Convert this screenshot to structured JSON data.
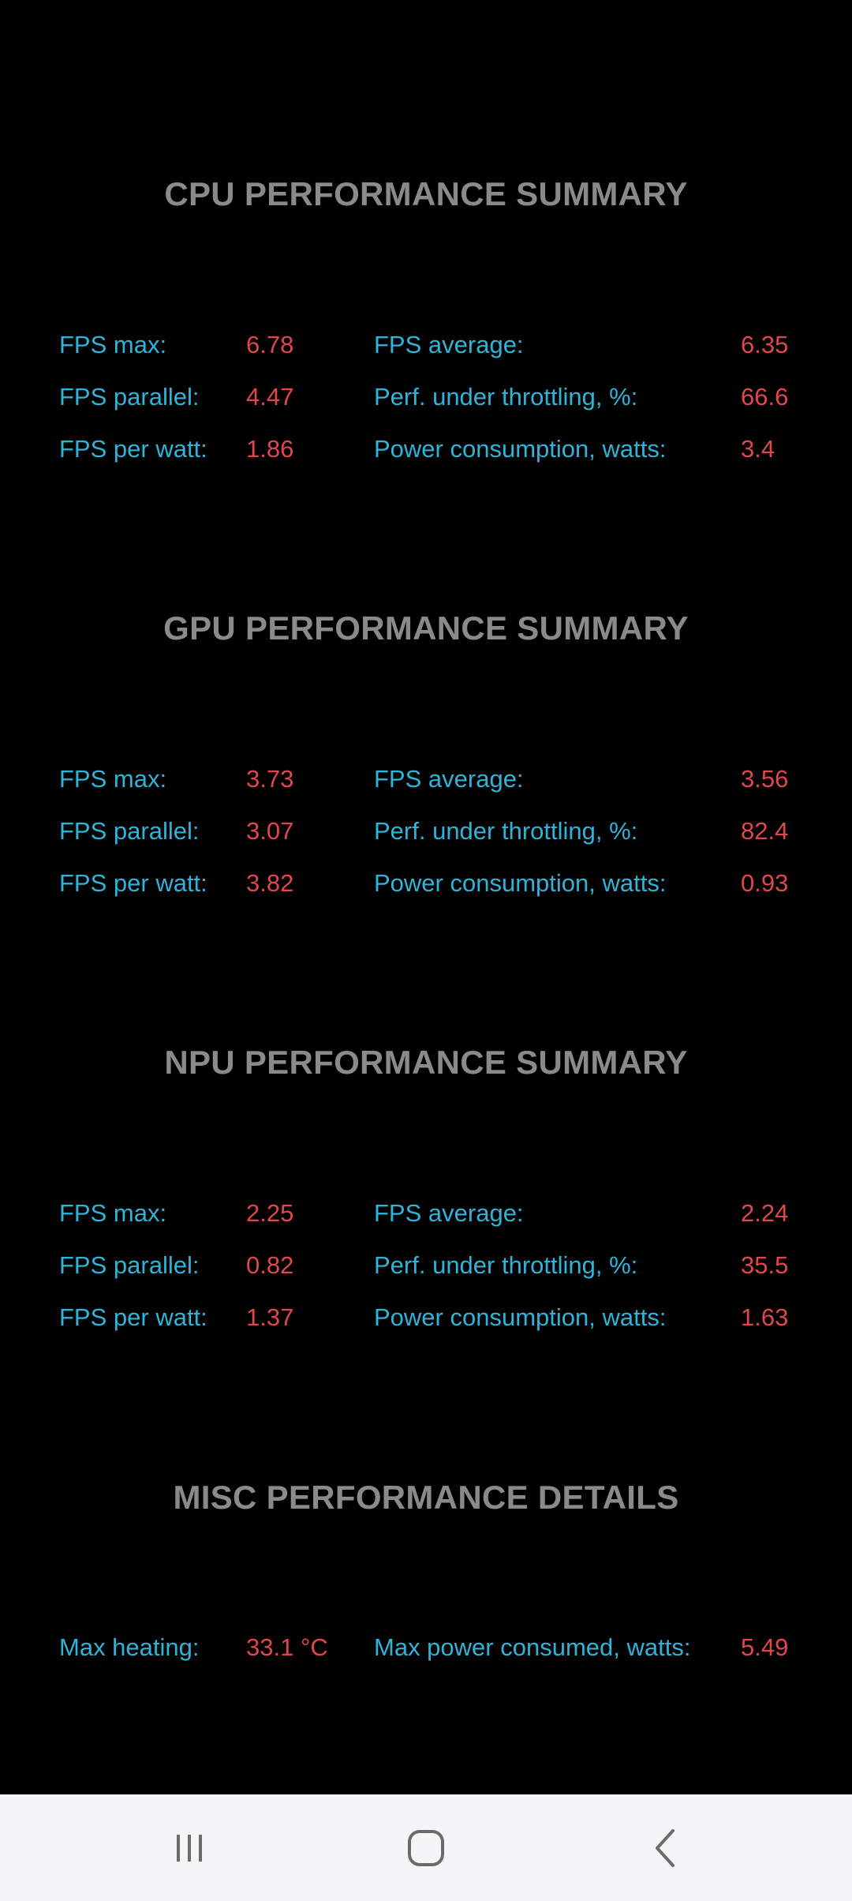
{
  "sections": [
    {
      "title": "CPU PERFORMANCE SUMMARY",
      "rows": [
        {
          "l1": "FPS max:",
          "v1": "6.78",
          "l2": "FPS average:",
          "v2": "6.35"
        },
        {
          "l1": "FPS parallel:",
          "v1": "4.47",
          "l2": "Perf. under throttling, %:",
          "v2": "66.6"
        },
        {
          "l1": "FPS per watt:",
          "v1": "1.86",
          "l2": "Power consumption, watts:",
          "v2": "3.4"
        }
      ]
    },
    {
      "title": "GPU PERFORMANCE SUMMARY",
      "rows": [
        {
          "l1": "FPS max:",
          "v1": "3.73",
          "l2": "FPS average:",
          "v2": "3.56"
        },
        {
          "l1": "FPS parallel:",
          "v1": "3.07",
          "l2": "Perf. under throttling, %:",
          "v2": "82.4"
        },
        {
          "l1": "FPS per watt:",
          "v1": "3.82",
          "l2": "Power consumption, watts:",
          "v2": "0.93"
        }
      ]
    },
    {
      "title": "NPU PERFORMANCE SUMMARY",
      "rows": [
        {
          "l1": "FPS max:",
          "v1": "2.25",
          "l2": "FPS average:",
          "v2": "2.24"
        },
        {
          "l1": "FPS parallel:",
          "v1": "0.82",
          "l2": "Perf. under throttling, %:",
          "v2": "35.5"
        },
        {
          "l1": "FPS per watt:",
          "v1": "1.37",
          "l2": "Power consumption, watts:",
          "v2": "1.63"
        }
      ]
    },
    {
      "title": "MISC PERFORMANCE DETAILS",
      "rows": [
        {
          "l1": "Max heating:",
          "v1": "33.1 °C",
          "l2": "Max power consumed, watts:",
          "v2": "5.49"
        }
      ]
    }
  ],
  "navbar": {
    "recents_icon": "recents-icon",
    "home_icon": "home-icon",
    "back_icon": "back-icon"
  },
  "colors": {
    "background": "#000000",
    "title": "#8a8a8a",
    "label": "#2fb3d8",
    "value": "#e0474c",
    "navbar": "#f5f5f7"
  }
}
